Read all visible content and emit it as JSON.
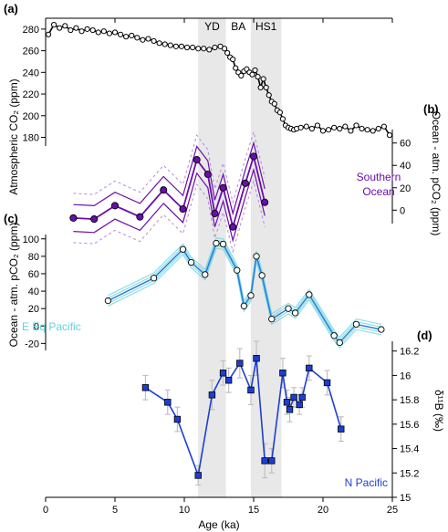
{
  "chart_data": {
    "type": "line",
    "x_axis": {
      "label": "Age (ka)",
      "ticks": [
        0,
        5,
        10,
        15,
        20,
        25
      ],
      "range": [
        0,
        25
      ]
    },
    "bands": [
      {
        "label": "YD",
        "range": [
          11,
          13
        ]
      },
      {
        "label": "BA",
        "range": [
          13,
          14.8
        ]
      },
      {
        "label": "HS1",
        "range": [
          14.8,
          17
        ]
      }
    ],
    "panels": [
      {
        "letter": "(a)",
        "ylabel": "Atmospheric CO₂ (ppm)",
        "yticks": [
          180,
          200,
          220,
          240,
          260,
          280
        ],
        "ylim": [
          172,
          290
        ],
        "color": "#000000",
        "series": {
          "x": [
            0.2,
            0.6,
            1,
            1.4,
            1.8,
            2.2,
            2.6,
            3,
            3.4,
            3.8,
            4.2,
            4.6,
            5,
            5.4,
            5.8,
            6.2,
            6.6,
            7,
            7.4,
            7.8,
            8.2,
            8.6,
            9,
            9.4,
            9.8,
            10.2,
            10.6,
            11,
            11.4,
            11.8,
            12.2,
            12.6,
            12.9,
            13.1,
            13.3,
            13.5,
            13.7,
            13.9,
            14.1,
            14.3,
            14.5,
            14.7,
            14.9,
            15.1,
            15.3,
            15.5,
            15.7,
            15.9,
            16.1,
            16.3,
            16.5,
            16.7,
            16.9,
            17.1,
            17.3,
            17.5,
            17.7,
            17.9,
            18.1,
            18.4,
            18.8,
            19.2,
            19.6,
            20,
            20.4,
            20.8,
            21.2,
            21.6,
            22,
            22.4,
            22.8,
            23.2,
            23.6,
            24,
            24.4,
            24.8
          ],
          "y": [
            275,
            284,
            281,
            283,
            279,
            281,
            278,
            280,
            279,
            277,
            278,
            276,
            277,
            275,
            273,
            274,
            272,
            270,
            271,
            269,
            267,
            266,
            265,
            264,
            264,
            263,
            263,
            262,
            262,
            261,
            263,
            264,
            262,
            258,
            254,
            252,
            244,
            240,
            237,
            241,
            243,
            240,
            238,
            242,
            236,
            226,
            234,
            226,
            219,
            213,
            211,
            205,
            203,
            197,
            191,
            189,
            188,
            187,
            188,
            189,
            190,
            188,
            191,
            186,
            187,
            189,
            188,
            190,
            186,
            191,
            188,
            187,
            186,
            188,
            190,
            182
          ]
        }
      },
      {
        "letter": "(b)",
        "ylabel": "Ocean - atm. pCO₂ (ppm)",
        "yticks": [
          0,
          20,
          40,
          60
        ],
        "ylim": [
          -12,
          72
        ],
        "color": "#6a0dad",
        "region_label": [
          "Southern",
          "Ocean"
        ],
        "series": {
          "x": [
            2,
            3.5,
            5,
            6.8,
            8.5,
            9.9,
            10.9,
            11.7,
            12.2,
            12.8,
            13.5,
            14.4,
            15.0,
            15.8
          ],
          "y": [
            -7,
            -8,
            4,
            -6,
            18,
            1,
            45,
            32,
            -3,
            20,
            -15,
            24,
            48,
            7
          ]
        }
      },
      {
        "letter": "(c)",
        "ylabel": "Ocean - atm. pCO₂ (ppm)",
        "yticks": [
          -20,
          0,
          20,
          40,
          60,
          80,
          100
        ],
        "ylim": [
          -28,
          105
        ],
        "color": "#2d7bdc",
        "region_label": [
          "E Eq Pacific"
        ],
        "series": {
          "x": [
            4.5,
            7.8,
            9.9,
            10.5,
            11.5,
            12.3,
            12.8,
            13.8,
            14.3,
            14.8,
            15.2,
            15.6,
            16.3,
            17.5,
            18.0,
            19.0,
            20.8,
            21.2,
            22.4,
            24.2
          ],
          "y": [
            29,
            55,
            88,
            73,
            59,
            95,
            94,
            64,
            23,
            35,
            80,
            58,
            8,
            20,
            15,
            36,
            -11,
            -19,
            2,
            -4
          ]
        }
      },
      {
        "letter": "(d)",
        "ylabel": "δ¹¹B (‰)",
        "yticks": [
          15,
          15.2,
          15.4,
          15.6,
          15.8,
          16,
          16.2
        ],
        "ylim": [
          15,
          16.28
        ],
        "color": "#1c3fd3",
        "region_label": [
          "N Pacific"
        ],
        "series": {
          "x": [
            7.2,
            8.8,
            9.5,
            11.0,
            12.0,
            12.8,
            13.2,
            14.0,
            14.8,
            15.2,
            15.8,
            16.3,
            17.1,
            17.4,
            17.6,
            17.9,
            18.3,
            18.5,
            19.0,
            20.3,
            21.3
          ],
          "y": [
            15.9,
            15.78,
            15.64,
            15.18,
            15.84,
            16.02,
            15.96,
            16.1,
            15.88,
            16.14,
            15.3,
            15.3,
            16.02,
            15.78,
            15.72,
            15.82,
            15.76,
            15.82,
            16.06,
            15.94,
            15.56
          ],
          "err": [
            0.1,
            0.1,
            0.1,
            0.08,
            0.12,
            0.1,
            0.1,
            0.12,
            0.12,
            0.14,
            0.14,
            0.1,
            0.12,
            0.1,
            0.1,
            0.08,
            0.08,
            0.08,
            0.1,
            0.1,
            0.1
          ]
        }
      }
    ]
  },
  "colors": {
    "band": "#e6e6e6",
    "band_dark": "#d9d9d9",
    "southern": "#6a0dad",
    "southern_light": "#b48bd8",
    "eeq_line": "#2d7bdc",
    "eeq_band": "#6fd6df",
    "npac": "#1c3fd3",
    "error": "#c0c0c0"
  }
}
